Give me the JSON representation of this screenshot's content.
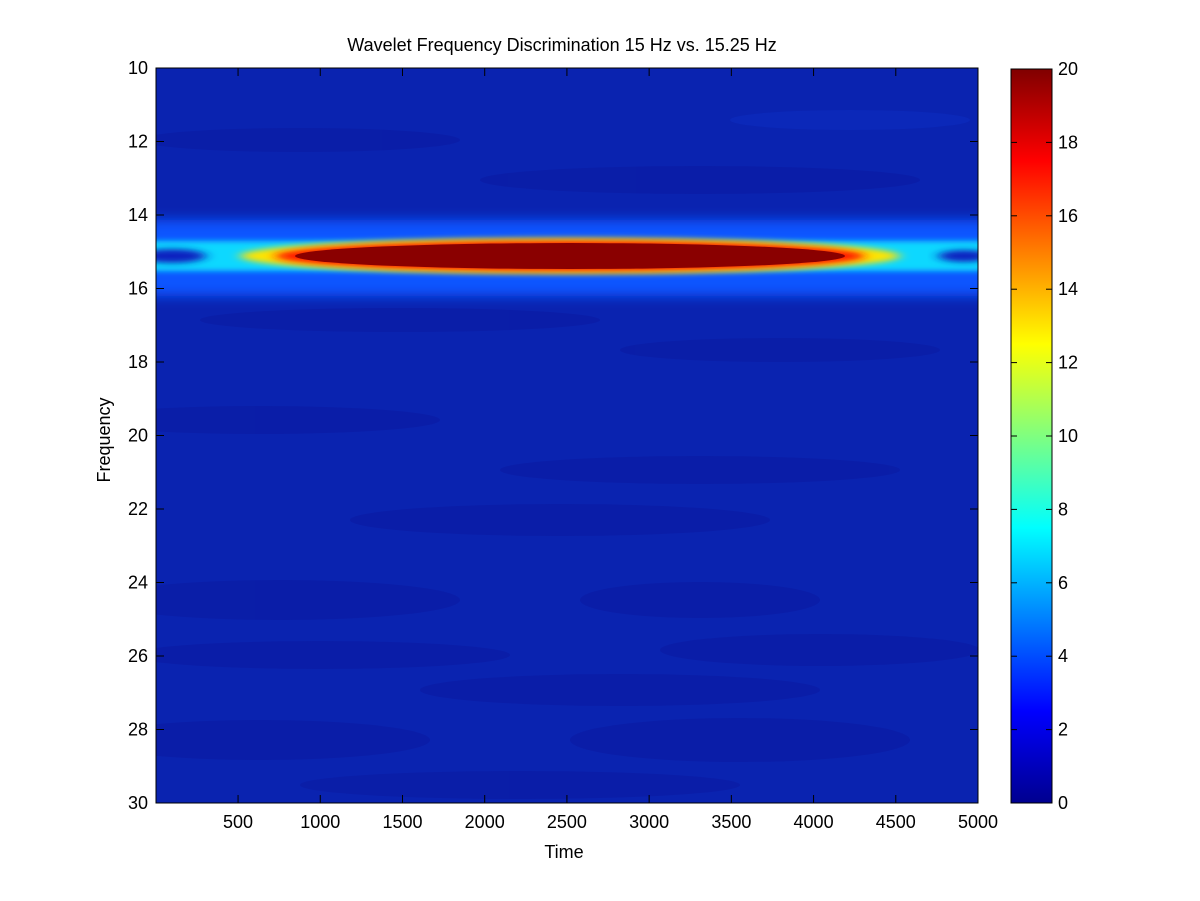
{
  "chart_data": {
    "type": "heatmap",
    "title": "Wavelet Frequency Discrimination 15 Hz vs. 15.25 Hz",
    "xlabel": "Time",
    "ylabel": "Frequency",
    "xlim": [
      1,
      5000
    ],
    "ylim": [
      10,
      30
    ],
    "y_reversed": true,
    "x_ticks": [
      500,
      1000,
      1500,
      2000,
      2500,
      3000,
      3500,
      4000,
      4500,
      5000
    ],
    "y_ticks": [
      10,
      12,
      14,
      16,
      18,
      20,
      22,
      24,
      26,
      28,
      30
    ],
    "colorbar": {
      "colormap": "jet",
      "clim": [
        0,
        20
      ],
      "ticks": [
        0,
        2,
        4,
        6,
        8,
        10,
        12,
        14,
        16,
        18,
        20
      ]
    },
    "features": [
      {
        "description": "power ridge",
        "frequency": 15.1,
        "time_range": [
          900,
          4200
        ],
        "value": 20
      },
      {
        "description": "edge tails",
        "frequency": 15.1,
        "time_range": [
          0,
          5000
        ],
        "value": 5
      }
    ],
    "background_value": 0.5
  }
}
